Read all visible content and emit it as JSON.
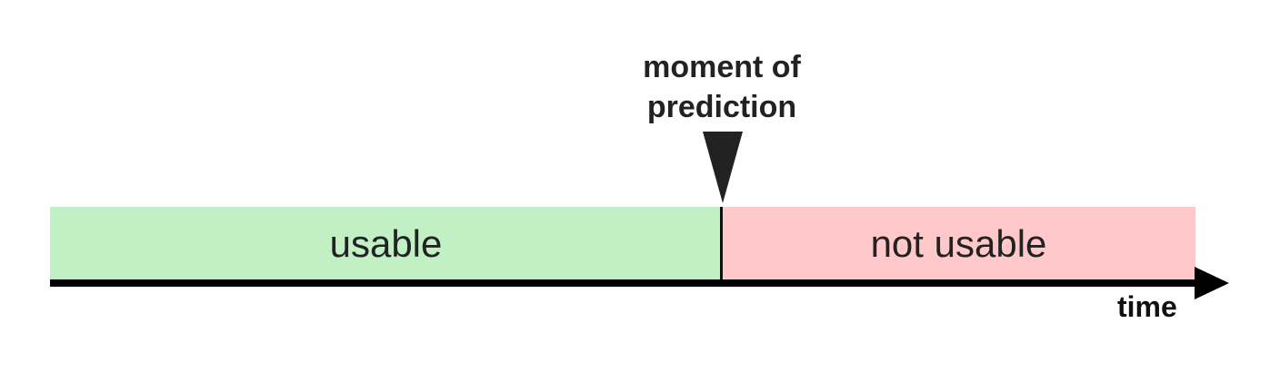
{
  "prediction": {
    "label_line1": "moment of",
    "label_line2": "prediction"
  },
  "regions": {
    "usable": {
      "label": "usable",
      "color": "#c0f0c3"
    },
    "not_usable": {
      "label": "not usable",
      "color": "#ffc8ca"
    }
  },
  "axis": {
    "label": "time",
    "color": "#000000"
  }
}
